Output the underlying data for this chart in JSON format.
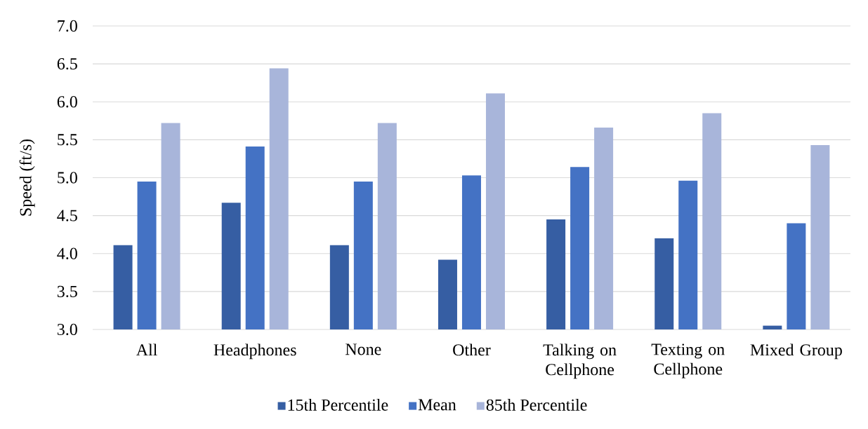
{
  "chart_data": {
    "type": "bar",
    "ylabel": "Speed (ft/s)",
    "categories": [
      "All",
      "Headphones",
      "None",
      "Other",
      "Talking on Cellphone",
      "Texting on Cellphone",
      "Mixed Group"
    ],
    "series": [
      {
        "name": "15th Percentile",
        "color": "#365ea3",
        "values": [
          4.11,
          4.67,
          4.11,
          3.92,
          4.45,
          4.2,
          3.05
        ]
      },
      {
        "name": "Mean",
        "color": "#4472c4",
        "values": [
          4.95,
          5.41,
          4.95,
          5.03,
          5.14,
          4.96,
          4.4
        ]
      },
      {
        "name": "85th Percentile",
        "color": "#a8b5da",
        "values": [
          5.72,
          6.44,
          5.72,
          6.11,
          5.66,
          5.85,
          5.43
        ]
      }
    ],
    "ylim": [
      3,
      7
    ],
    "yticks": [
      {
        "value": 3,
        "label": "3.0"
      },
      3.5,
      {
        "value": 4,
        "label": "4.0"
      },
      4.5,
      {
        "value": 5,
        "label": "5.0"
      },
      5.5,
      {
        "value": 6,
        "label": "6.0"
      },
      6.5,
      {
        "value": 7,
        "label": "7.0"
      }
    ],
    "grid": "y",
    "legend": "bottom"
  }
}
